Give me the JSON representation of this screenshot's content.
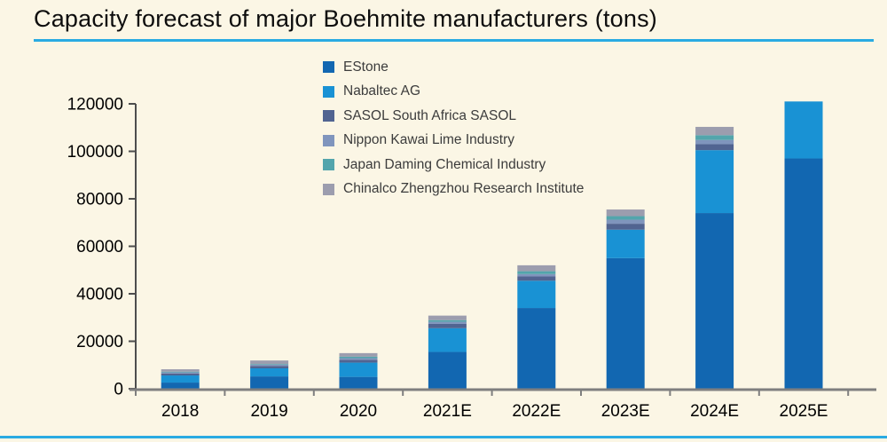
{
  "page": {
    "background_color": "#FBF6E5",
    "accent_line_color": "#29ABE2"
  },
  "title": "Capacity forecast of major Boehmite manufacturers (tons)",
  "chart_data": {
    "type": "bar",
    "stacked": true,
    "title": "Capacity forecast of major Boehmite manufacturers (tons)",
    "xlabel": "",
    "ylabel": "",
    "categories": [
      "2018",
      "2019",
      "2020",
      "2021E",
      "2022E",
      "2023E",
      "2024E",
      "2025E"
    ],
    "series": [
      {
        "name": "EStone",
        "color": "#1267B1",
        "values": [
          2600,
          5200,
          5000,
          15500,
          34000,
          55000,
          74000,
          97000
        ]
      },
      {
        "name": "Nabaltec AG",
        "color": "#1992D4",
        "values": [
          3000,
          3400,
          6000,
          10000,
          11500,
          12000,
          26500,
          24000
        ]
      },
      {
        "name": "SASOL South Africa SASOL",
        "color": "#516491",
        "values": [
          800,
          1000,
          1200,
          1800,
          1800,
          2500,
          2500,
          0
        ]
      },
      {
        "name": "Nippon Kawai Lime Industry",
        "color": "#8095BD",
        "values": [
          500,
          500,
          700,
          900,
          1000,
          1700,
          1800,
          0
        ]
      },
      {
        "name": "Japan Daming Chemical Industry",
        "color": "#53A5AC",
        "values": [
          300,
          300,
          600,
          700,
          1200,
          1500,
          2000,
          0
        ]
      },
      {
        "name": "Chinalco Zhengzhou Research Institute",
        "color": "#9C9DAE",
        "values": [
          1000,
          1500,
          1500,
          1900,
          2500,
          2800,
          3500,
          0
        ]
      }
    ],
    "totals": [
      8200,
      11900,
      15000,
      30800,
      52000,
      75500,
      110300,
      121000
    ],
    "ylim": [
      0,
      120000
    ],
    "yticks": [
      0,
      20000,
      40000,
      60000,
      80000,
      100000,
      120000
    ],
    "ytick_labels": [
      "0",
      "20000",
      "40000",
      "60000",
      "80000",
      "100000",
      "120000"
    ],
    "legend_position": "top, left-of-center, vertical list",
    "grid": false,
    "axis_color": "#4d4d4d",
    "x_axis_color": "#7f7f7f"
  }
}
